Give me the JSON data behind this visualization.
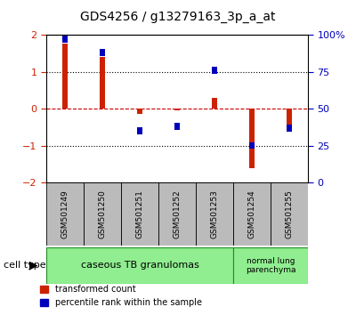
{
  "title": "GDS4256 / g13279163_3p_a_at",
  "samples": [
    "GSM501249",
    "GSM501250",
    "GSM501251",
    "GSM501252",
    "GSM501253",
    "GSM501254",
    "GSM501255"
  ],
  "transformed_count": [
    1.75,
    1.4,
    -0.15,
    -0.05,
    0.3,
    -1.6,
    -0.5
  ],
  "percentile_rank_pct": [
    97,
    88,
    35,
    38,
    76,
    25,
    37
  ],
  "ylim": [
    -2,
    2
  ],
  "yticks_left": [
    -2,
    -1,
    0,
    1,
    2
  ],
  "yticks_right_pct": [
    0,
    25,
    50,
    75,
    100
  ],
  "yticks_right_labels": [
    "0",
    "25",
    "50",
    "75",
    "100%"
  ],
  "red_color": "#CC2200",
  "blue_color": "#0000BB",
  "bar_width": 0.12,
  "blue_marker_size": 0.18,
  "group1_indices": [
    0,
    1,
    2,
    3,
    4
  ],
  "group2_indices": [
    5,
    6
  ],
  "group1_label": "caseous TB granulomas",
  "group2_label": "normal lung\nparenchyma",
  "group_color": "#90EE90",
  "group_edge_color": "#228B22",
  "sample_box_color": "#BBBBBB",
  "zero_line_color": "#CC0000",
  "dot_line_color": "#000000"
}
